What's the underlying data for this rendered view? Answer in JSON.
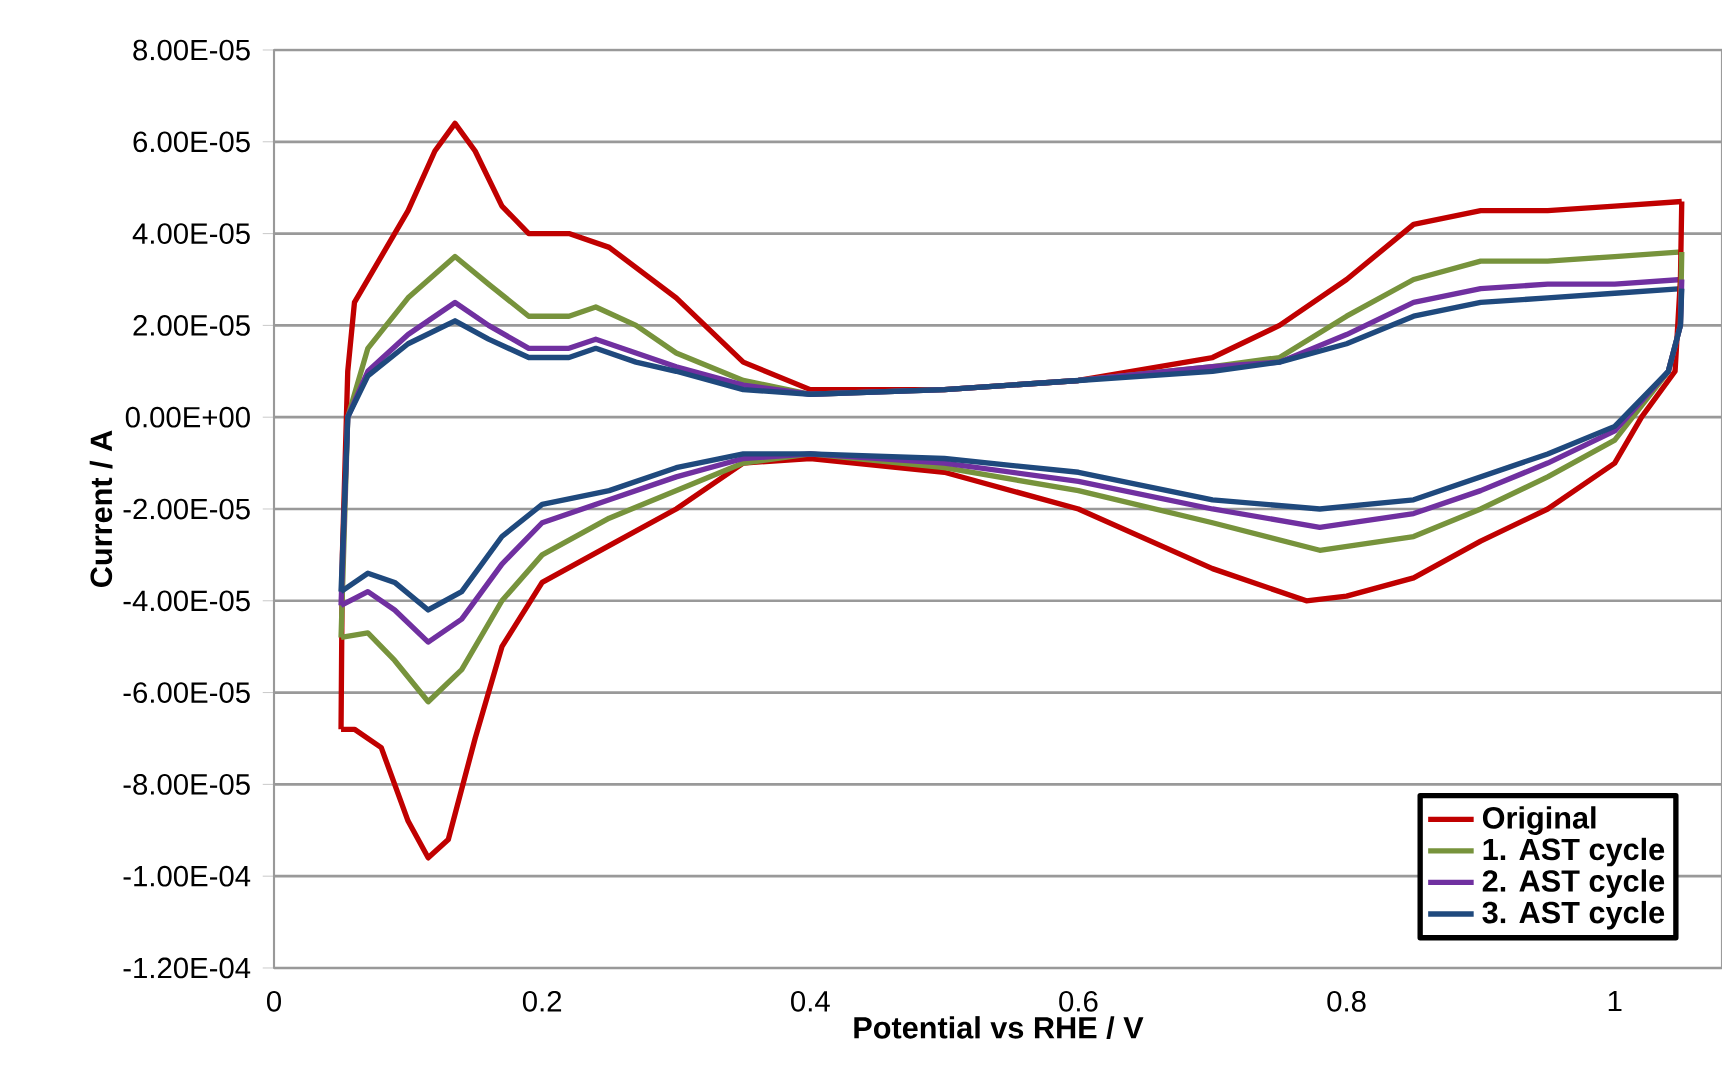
{
  "chart_data": {
    "type": "line",
    "xlabel": "Potential vs RHE / V",
    "ylabel": "Current / A",
    "xlim": [
      0,
      1.08
    ],
    "xticks": [
      0,
      0.2,
      0.4,
      0.6,
      0.8,
      1
    ],
    "ylim": [
      -0.00012,
      8e-05
    ],
    "yticks": [
      {
        "value": -0.00012,
        "label": "-1.20E-04"
      },
      {
        "value": -0.0001,
        "label": "-1.00E-04"
      },
      {
        "value": -8e-05,
        "label": "-8.00E-05"
      },
      {
        "value": -6e-05,
        "label": "-6.00E-05"
      },
      {
        "value": -4e-05,
        "label": "-4.00E-05"
      },
      {
        "value": -2e-05,
        "label": "-2.00E-05"
      },
      {
        "value": 0,
        "label": "0.00E+00"
      },
      {
        "value": 2e-05,
        "label": "2.00E-05"
      },
      {
        "value": 4e-05,
        "label": "4.00E-05"
      },
      {
        "value": 6e-05,
        "label": "6.00E-05"
      },
      {
        "value": 8e-05,
        "label": "8.00E-05"
      }
    ],
    "grid": "y",
    "legend": "bottom right",
    "marker": "none",
    "line_style": "solid",
    "series": [
      {
        "name": "Original",
        "color": "#c00000",
        "x": [
          0.05,
          0.051,
          0.055,
          0.06,
          0.08,
          0.1,
          0.12,
          0.135,
          0.15,
          0.17,
          0.19,
          0.22,
          0.25,
          0.3,
          0.35,
          0.4,
          0.5,
          0.6,
          0.7,
          0.75,
          0.8,
          0.85,
          0.9,
          0.95,
          1.0,
          1.05
        ],
        "values": [
          -6.8e-05,
          -3e-05,
          1e-05,
          2.5e-05,
          3.5e-05,
          4.5e-05,
          5.8e-05,
          6.4e-05,
          5.8e-05,
          4.6e-05,
          4e-05,
          4e-05,
          3.7e-05,
          2.6e-05,
          1.2e-05,
          6e-06,
          6e-06,
          8e-06,
          1.3e-05,
          2e-05,
          3e-05,
          4.2e-05,
          4.5e-05,
          4.5e-05,
          4.6e-05,
          4.7e-05
        ]
      },
      {
        "name": "1. AST cycle",
        "color": "#77933c",
        "x": [
          0.05,
          0.055,
          0.07,
          0.1,
          0.135,
          0.16,
          0.19,
          0.22,
          0.24,
          0.27,
          0.3,
          0.35,
          0.4,
          0.5,
          0.6,
          0.7,
          0.75,
          0.8,
          0.85,
          0.9,
          0.95,
          1.0,
          1.05
        ],
        "values": [
          -4.8e-05,
          0,
          1.5e-05,
          2.6e-05,
          3.5e-05,
          2.9e-05,
          2.2e-05,
          2.2e-05,
          2.4e-05,
          2e-05,
          1.4e-05,
          8e-06,
          5e-06,
          6e-06,
          8e-06,
          1.1e-05,
          1.3e-05,
          2.2e-05,
          3e-05,
          3.4e-05,
          3.4e-05,
          3.5e-05,
          3.6e-05
        ]
      },
      {
        "name": "2. AST cycle",
        "color": "#7030a0",
        "x": [
          0.05,
          0.055,
          0.07,
          0.1,
          0.135,
          0.16,
          0.19,
          0.22,
          0.24,
          0.27,
          0.3,
          0.35,
          0.4,
          0.5,
          0.6,
          0.7,
          0.75,
          0.8,
          0.85,
          0.9,
          0.95,
          1.0,
          1.05
        ],
        "values": [
          -4.1e-05,
          0,
          1e-05,
          1.8e-05,
          2.5e-05,
          2e-05,
          1.5e-05,
          1.5e-05,
          1.7e-05,
          1.4e-05,
          1.1e-05,
          7e-06,
          5e-06,
          6e-06,
          8e-06,
          1.1e-05,
          1.2e-05,
          1.8e-05,
          2.5e-05,
          2.8e-05,
          2.9e-05,
          2.9e-05,
          3e-05
        ]
      },
      {
        "name": "3. AST cycle",
        "color": "#1f497d",
        "x": [
          0.05,
          0.055,
          0.07,
          0.1,
          0.135,
          0.16,
          0.19,
          0.22,
          0.24,
          0.27,
          0.3,
          0.35,
          0.4,
          0.5,
          0.6,
          0.7,
          0.75,
          0.8,
          0.85,
          0.9,
          0.95,
          1.0,
          1.05
        ],
        "values": [
          -3.8e-05,
          0,
          9e-06,
          1.6e-05,
          2.1e-05,
          1.7e-05,
          1.3e-05,
          1.3e-05,
          1.5e-05,
          1.2e-05,
          1e-05,
          6e-06,
          5e-06,
          6e-06,
          8e-06,
          1e-05,
          1.2e-05,
          1.6e-05,
          2.2e-05,
          2.5e-05,
          2.6e-05,
          2.7e-05,
          2.8e-05
        ]
      },
      {
        "color": "#c00000",
        "x": [
          1.05,
          1.049,
          1.045,
          1.02,
          1.0,
          0.95,
          0.9,
          0.85,
          0.8,
          0.77,
          0.7,
          0.6,
          0.5,
          0.4,
          0.35,
          0.3,
          0.25,
          0.2,
          0.17,
          0.15,
          0.13,
          0.115,
          0.1,
          0.08,
          0.06,
          0.05
        ],
        "values": [
          4.7e-05,
          3e-05,
          1e-05,
          0,
          -1e-05,
          -2e-05,
          -2.7e-05,
          -3.5e-05,
          -3.9e-05,
          -4e-05,
          -3.3e-05,
          -2e-05,
          -1.2e-05,
          -9e-06,
          -1e-05,
          -2e-05,
          -2.8e-05,
          -3.6e-05,
          -5e-05,
          -7e-05,
          -9.2e-05,
          -9.6e-05,
          -8.8e-05,
          -7.2e-05,
          -6.8e-05,
          -6.8e-05
        ]
      },
      {
        "color": "#77933c",
        "x": [
          1.05,
          1.049,
          1.04,
          1.0,
          0.95,
          0.9,
          0.85,
          0.78,
          0.7,
          0.6,
          0.5,
          0.4,
          0.35,
          0.3,
          0.25,
          0.2,
          0.17,
          0.14,
          0.115,
          0.09,
          0.07,
          0.05
        ],
        "values": [
          3.6e-05,
          2e-05,
          1e-05,
          -5e-06,
          -1.3e-05,
          -2e-05,
          -2.6e-05,
          -2.9e-05,
          -2.3e-05,
          -1.6e-05,
          -1.1e-05,
          -8e-06,
          -1e-05,
          -1.6e-05,
          -2.2e-05,
          -3e-05,
          -4e-05,
          -5.5e-05,
          -6.2e-05,
          -5.3e-05,
          -4.7e-05,
          -4.8e-05
        ]
      },
      {
        "color": "#7030a0",
        "x": [
          1.05,
          1.049,
          1.04,
          1.0,
          0.95,
          0.9,
          0.85,
          0.78,
          0.7,
          0.6,
          0.5,
          0.4,
          0.35,
          0.3,
          0.25,
          0.2,
          0.17,
          0.14,
          0.115,
          0.09,
          0.07,
          0.05
        ],
        "values": [
          3e-05,
          2e-05,
          1e-05,
          -3e-06,
          -1e-05,
          -1.6e-05,
          -2.1e-05,
          -2.4e-05,
          -2e-05,
          -1.4e-05,
          -1e-05,
          -8e-06,
          -9e-06,
          -1.3e-05,
          -1.8e-05,
          -2.3e-05,
          -3.2e-05,
          -4.4e-05,
          -4.9e-05,
          -4.2e-05,
          -3.8e-05,
          -4.1e-05
        ]
      },
      {
        "color": "#1f497d",
        "x": [
          1.05,
          1.049,
          1.04,
          1.0,
          0.95,
          0.9,
          0.85,
          0.78,
          0.7,
          0.6,
          0.5,
          0.4,
          0.35,
          0.3,
          0.25,
          0.2,
          0.17,
          0.14,
          0.115,
          0.09,
          0.07,
          0.05
        ],
        "values": [
          2.8e-05,
          2e-05,
          1e-05,
          -2e-06,
          -8e-06,
          -1.3e-05,
          -1.8e-05,
          -2e-05,
          -1.8e-05,
          -1.2e-05,
          -9e-06,
          -8e-06,
          -8e-06,
          -1.1e-05,
          -1.6e-05,
          -1.9e-05,
          -2.6e-05,
          -3.8e-05,
          -4.2e-05,
          -3.6e-05,
          -3.4e-05,
          -3.8e-05
        ]
      }
    ]
  }
}
